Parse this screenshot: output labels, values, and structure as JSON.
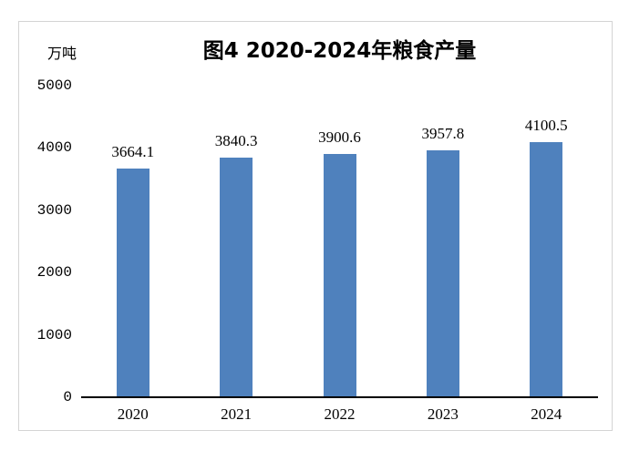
{
  "chart": {
    "title": "图4 2020-2024年粮食产量",
    "unit_label": "万吨"
  },
  "chart_data": {
    "type": "bar",
    "title": "图4 2020-2024年粮食产量",
    "categories": [
      "2020",
      "2021",
      "2022",
      "2023",
      "2024"
    ],
    "values": [
      3664.1,
      3840.3,
      3900.6,
      3957.8,
      4100.5
    ],
    "data_labels": [
      "3664.1",
      "3840.3",
      "3900.6",
      "3957.8",
      "4100.5"
    ],
    "xlabel": "",
    "ylabel": "万吨",
    "ylim": [
      0,
      5000
    ],
    "yticks": [
      0,
      1000,
      2000,
      3000,
      4000,
      5000
    ],
    "grid": false,
    "legend_position": "none",
    "bar_color": "#4F81BD",
    "axis_line_color": "#000000",
    "frame_border_color": "#D4D4D4"
  }
}
